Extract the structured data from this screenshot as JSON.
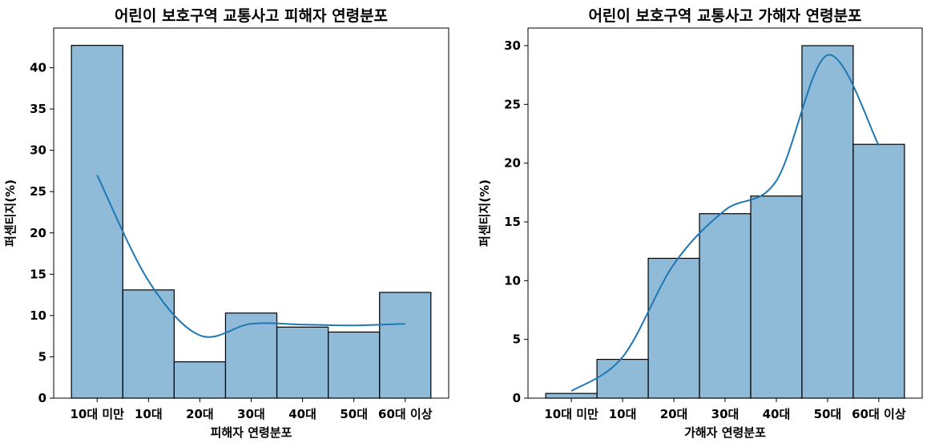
{
  "chart_data": [
    {
      "type": "bar",
      "title": "어린이 보호구역 교통사고 피해자 연령분포",
      "xlabel": "피해자 연령분포",
      "ylabel": "퍼센티지(%)",
      "categories": [
        "10대 미만",
        "10대",
        "20대",
        "30대",
        "40대",
        "50대",
        "60대 이상"
      ],
      "values": [
        42.7,
        13.1,
        4.4,
        10.3,
        8.6,
        8.0,
        12.8
      ],
      "kde": [
        27.0,
        14.2,
        7.6,
        9.0,
        8.9,
        8.8,
        9.0
      ],
      "ylim": [
        0,
        44.8
      ],
      "yticks": [
        0,
        5,
        10,
        15,
        20,
        25,
        30,
        35,
        40
      ],
      "grid": false,
      "bar_color": "#1f77b4"
    },
    {
      "type": "bar",
      "title": "어린이 보호구역 교통사고 가해자 연령분포",
      "xlabel": "가해자 연령분포",
      "ylabel": "퍼센티지(%)",
      "categories": [
        "10대 미만",
        "10대",
        "20대",
        "30대",
        "40대",
        "50대",
        "60대 이상"
      ],
      "values": [
        0.4,
        3.3,
        11.9,
        15.7,
        17.2,
        30.0,
        21.6
      ],
      "kde": [
        0.6,
        3.5,
        11.4,
        16.0,
        18.5,
        29.2,
        21.5
      ],
      "ylim": [
        0,
        31.5
      ],
      "yticks": [
        0,
        5,
        10,
        15,
        20,
        25,
        30
      ],
      "grid": false,
      "bar_color": "#1f77b4"
    }
  ]
}
